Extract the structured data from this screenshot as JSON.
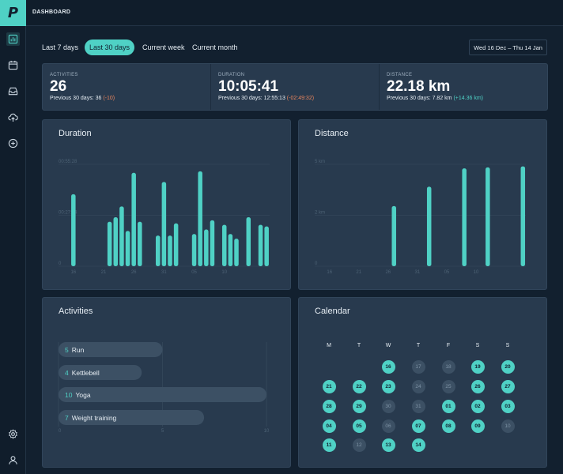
{
  "app": {
    "logo_letter": "P",
    "page_title": "DASHBOARD"
  },
  "sidebar": {
    "top_icons": [
      "bar-chart-icon",
      "calendar-icon",
      "inbox-icon",
      "cloud-upload-icon",
      "plus-circle-icon"
    ],
    "bottom_icons": [
      "gear-icon",
      "user-icon"
    ],
    "active_index": 0
  },
  "filters": {
    "items": [
      "Last 7 days",
      "Last 30 days",
      "Current week",
      "Current month"
    ],
    "active": "Last 30 days",
    "date_range": "Wed 16 Dec – Thu 14 Jan"
  },
  "stats": [
    {
      "label": "ACTIVITIES",
      "value": "26",
      "prev_label": "Previous 30 days: 36",
      "change": "(-10)",
      "change_type": "neg"
    },
    {
      "label": "DURATION",
      "value": "10:05:41",
      "prev_label": "Previous 30 days: 12:55:13",
      "change": "(-02:49:32)",
      "change_type": "neg"
    },
    {
      "label": "DISTANCE",
      "value": "22.18 km",
      "prev_label": "Previous 30 days: 7.82 km",
      "change": "(+14.36 km)",
      "change_type": "pos"
    }
  ],
  "panels": {
    "duration": "Duration",
    "distance": "Distance",
    "activities": "Activities",
    "calendar": "Calendar"
  },
  "colors": {
    "accent": "#4fd1c5",
    "negative": "#e8845c",
    "panel": "#283a4e",
    "background": "#12202f"
  },
  "chart_data": [
    {
      "type": "bar",
      "title": "Duration",
      "x_tick_labels": [
        "16",
        "21",
        "26",
        "31",
        "05",
        "10"
      ],
      "y_tick_labels": [
        "0",
        "00:27:44",
        "00:55:28"
      ],
      "ylim_seconds": [
        0,
        3328
      ],
      "values_seconds": [
        2350,
        0,
        0,
        0,
        0,
        0,
        1450,
        1600,
        1950,
        1150,
        3050,
        1450,
        0,
        0,
        1000,
        2750,
        1000,
        1400,
        0,
        0,
        1050,
        3100,
        1200,
        1500,
        0,
        1350,
        1050,
        900,
        0,
        1600,
        0,
        1350,
        1300
      ]
    },
    {
      "type": "bar",
      "title": "Distance",
      "x_tick_labels": [
        "16",
        "21",
        "26",
        "31",
        "05",
        "10"
      ],
      "y_tick_labels": [
        "0",
        "2 km",
        "5 km"
      ],
      "ylim_km": [
        0,
        5
      ],
      "values_km": [
        0,
        0,
        0,
        0,
        0,
        0,
        0,
        0,
        0,
        0,
        0,
        2.95,
        0,
        0,
        0,
        0,
        0,
        3.9,
        0,
        0,
        0,
        0,
        0,
        4.8,
        0,
        0,
        0,
        4.85,
        0,
        0,
        0,
        0,
        0,
        4.9
      ]
    },
    {
      "type": "bar",
      "orientation": "horizontal",
      "title": "Activities",
      "x_tick_labels": [
        "0",
        "5",
        "10"
      ],
      "xlim": [
        0,
        10
      ],
      "categories": [
        "Run",
        "Kettlebell",
        "Yoga",
        "Weight training"
      ],
      "values": [
        5,
        4,
        10,
        7
      ]
    }
  ],
  "calendar": {
    "weekdays": [
      "M",
      "T",
      "W",
      "T",
      "F",
      "S",
      "S"
    ],
    "weeks": [
      [
        null,
        null,
        {
          "d": "16",
          "on": true
        },
        {
          "d": "17",
          "on": false
        },
        {
          "d": "18",
          "on": false
        },
        {
          "d": "19",
          "on": true
        },
        {
          "d": "20",
          "on": true
        }
      ],
      [
        {
          "d": "21",
          "on": true
        },
        {
          "d": "22",
          "on": true
        },
        {
          "d": "23",
          "on": true
        },
        {
          "d": "24",
          "on": false
        },
        {
          "d": "25",
          "on": false
        },
        {
          "d": "26",
          "on": true
        },
        {
          "d": "27",
          "on": true
        }
      ],
      [
        {
          "d": "28",
          "on": true
        },
        {
          "d": "29",
          "on": true
        },
        {
          "d": "30",
          "on": false
        },
        {
          "d": "31",
          "on": false
        },
        {
          "d": "01",
          "on": true
        },
        {
          "d": "02",
          "on": true
        },
        {
          "d": "03",
          "on": true
        }
      ],
      [
        {
          "d": "04",
          "on": true
        },
        {
          "d": "05",
          "on": true
        },
        {
          "d": "06",
          "on": false
        },
        {
          "d": "07",
          "on": true
        },
        {
          "d": "08",
          "on": true
        },
        {
          "d": "09",
          "on": true
        },
        {
          "d": "10",
          "on": false
        }
      ],
      [
        {
          "d": "11",
          "on": true
        },
        {
          "d": "12",
          "on": false
        },
        {
          "d": "13",
          "on": true
        },
        {
          "d": "14",
          "on": true
        },
        null,
        null,
        null
      ]
    ]
  }
}
